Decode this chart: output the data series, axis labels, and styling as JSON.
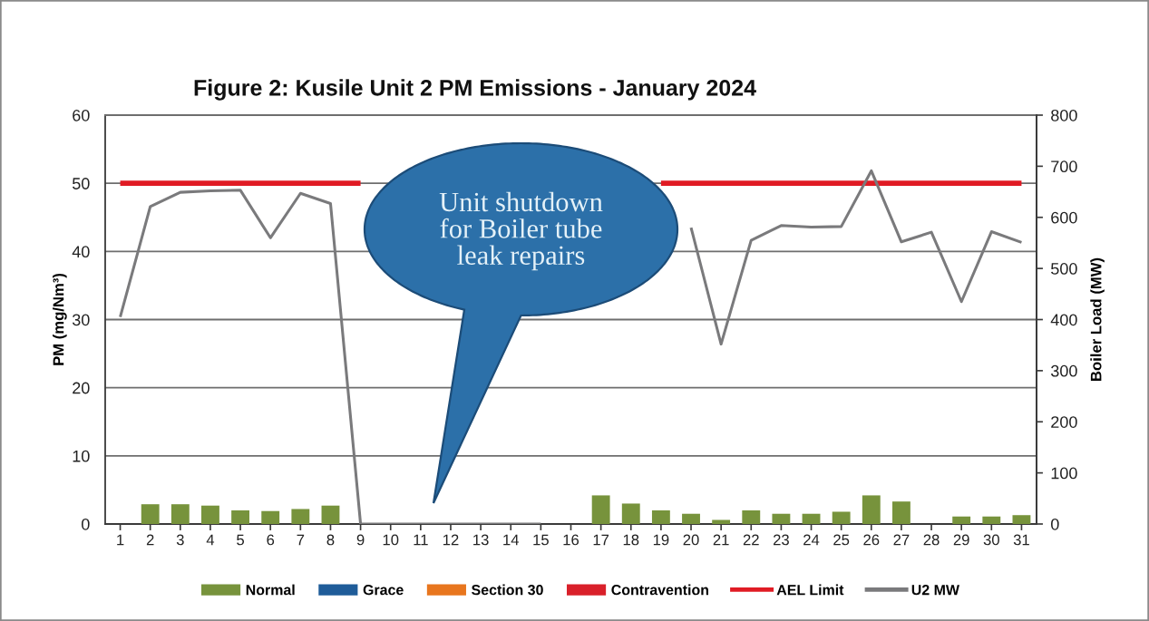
{
  "chart_data": {
    "type": "bar",
    "title": "Figure 2: Kusile Unit 2 PM Emissions - January 2024",
    "ylabel": "PM (mg/Nm³)",
    "y2label": "Boiler Load (MW)",
    "categories": [
      "1",
      "2",
      "3",
      "4",
      "5",
      "6",
      "7",
      "8",
      "9",
      "10",
      "11",
      "12",
      "13",
      "14",
      "15",
      "16",
      "17",
      "18",
      "19",
      "20",
      "21",
      "22",
      "23",
      "24",
      "25",
      "26",
      "27",
      "28",
      "29",
      "30",
      "31"
    ],
    "series": [
      {
        "name": "Normal",
        "color": "#77933c",
        "values": [
          null,
          2.9,
          2.9,
          2.7,
          2.0,
          1.9,
          2.2,
          2.7,
          null,
          null,
          null,
          null,
          null,
          null,
          null,
          null,
          4.2,
          3.0,
          2.0,
          1.5,
          0.6,
          2.0,
          1.5,
          1.5,
          1.8,
          4.2,
          3.3,
          null,
          1.1,
          1.1,
          1.3
        ]
      },
      {
        "name": "Grace",
        "color": "#1f5c99",
        "values": [
          null,
          null,
          null,
          null,
          null,
          null,
          null,
          null,
          null,
          null,
          null,
          null,
          null,
          null,
          null,
          null,
          null,
          null,
          null,
          null,
          null,
          null,
          null,
          null,
          null,
          null,
          null,
          null,
          null,
          null,
          null
        ]
      },
      {
        "name": "Section 30",
        "color": "#e8761e",
        "values": [
          null,
          null,
          null,
          null,
          null,
          null,
          null,
          null,
          null,
          null,
          null,
          null,
          null,
          null,
          null,
          null,
          null,
          null,
          null,
          null,
          null,
          null,
          null,
          null,
          null,
          null,
          null,
          null,
          null,
          null,
          null
        ]
      },
      {
        "name": "Contravention",
        "color": "#d9202a",
        "values": [
          null,
          null,
          null,
          null,
          null,
          null,
          null,
          null,
          null,
          null,
          null,
          null,
          null,
          null,
          null,
          null,
          null,
          null,
          null,
          null,
          null,
          null,
          null,
          null,
          null,
          null,
          null,
          null,
          null,
          null,
          null
        ]
      },
      {
        "name": "AEL Limit",
        "type": "line",
        "color": "#e01b24",
        "values": [
          50,
          50,
          50,
          50,
          50,
          50,
          50,
          50,
          50,
          null,
          null,
          null,
          null,
          null,
          null,
          null,
          null,
          null,
          50,
          50,
          50,
          50,
          50,
          50,
          50,
          50,
          50,
          50,
          50,
          50,
          50
        ]
      },
      {
        "name": "U2 MW",
        "type": "line",
        "axis": "y2",
        "color": "#7a7a7c",
        "values": [
          405,
          621,
          649,
          652,
          653,
          560,
          647,
          627,
          0,
          0,
          0,
          0,
          0,
          0,
          0,
          null,
          null,
          null,
          null,
          580,
          352,
          555,
          584,
          581,
          582,
          691,
          552,
          571,
          435,
          572,
          551
        ]
      }
    ],
    "stacked": true,
    "ylim": [
      0,
      60
    ],
    "yticks": [
      0,
      10,
      20,
      30,
      40,
      50,
      60
    ],
    "y2lim": [
      0,
      800
    ],
    "y2ticks": [
      0,
      100,
      200,
      300,
      400,
      500,
      600,
      700,
      800
    ],
    "grid": "y",
    "legend": "bottom",
    "annotations": [
      "Unit shutdown\nfor Boiler tube\nleak repairs"
    ]
  }
}
